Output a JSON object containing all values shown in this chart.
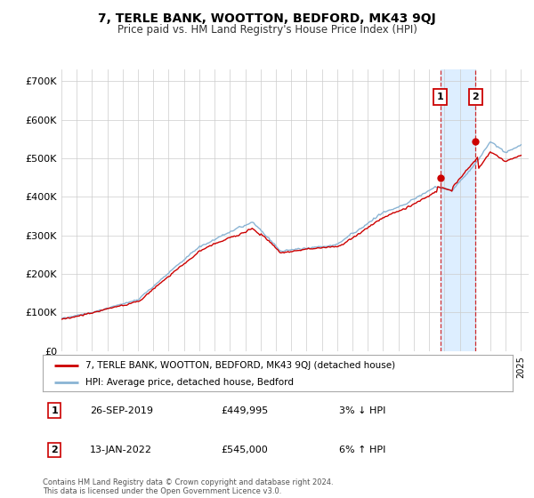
{
  "title": "7, TERLE BANK, WOOTTON, BEDFORD, MK43 9QJ",
  "subtitle": "Price paid vs. HM Land Registry's House Price Index (HPI)",
  "ytick_labels": [
    "£0",
    "£100K",
    "£200K",
    "£300K",
    "£400K",
    "£500K",
    "£600K",
    "£700K"
  ],
  "yticks": [
    0,
    100000,
    200000,
    300000,
    400000,
    500000,
    600000,
    700000
  ],
  "xmin": 1995.0,
  "xmax": 2025.5,
  "ymin": 0,
  "ymax": 730000,
  "legend_line1": "7, TERLE BANK, WOOTTON, BEDFORD, MK43 9QJ (detached house)",
  "legend_line2": "HPI: Average price, detached house, Bedford",
  "annotation1_date": "26-SEP-2019",
  "annotation1_price": "£449,995",
  "annotation1_hpi": "3% ↓ HPI",
  "annotation2_date": "13-JAN-2022",
  "annotation2_price": "£545,000",
  "annotation2_hpi": "6% ↑ HPI",
  "footer": "Contains HM Land Registry data © Crown copyright and database right 2024.\nThis data is licensed under the Open Government Licence v3.0.",
  "sale1_x": 2019.73,
  "sale1_y": 449995,
  "sale2_x": 2022.04,
  "sale2_y": 545000,
  "hpi_color": "#8ab4d4",
  "price_color": "#cc0000",
  "highlight_color": "#ddeeff",
  "background_color": "#ffffff",
  "grid_color": "#cccccc"
}
